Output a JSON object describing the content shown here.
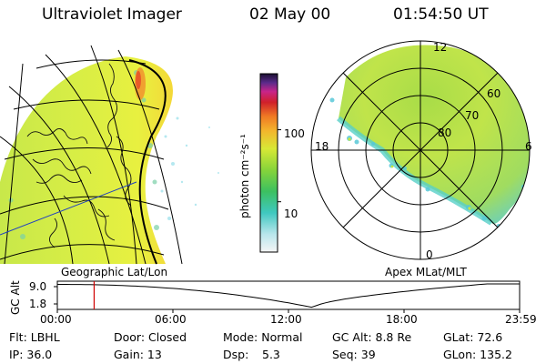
{
  "header": {
    "instrument": "Ultraviolet Imager",
    "date": "02 May 00",
    "time": "01:54:50 UT"
  },
  "colorbar": {
    "unit_label": "photon cm⁻²s⁻¹",
    "ticks": [
      "100",
      "10"
    ],
    "tick_values": [
      100,
      10
    ]
  },
  "left_panel": {
    "label": "Geographic Lat/Lon"
  },
  "right_panel": {
    "label": "Apex MLat/MLT",
    "mlt_labels": [
      "12",
      "18",
      "6",
      "0"
    ],
    "mlat_labels": [
      "60",
      "70",
      "80"
    ]
  },
  "altitude_plot": {
    "ylabel": "GC Alt",
    "yticks": [
      "9.0",
      "1.8"
    ],
    "xticks": [
      "00:00",
      "06:00",
      "12:00",
      "18:00",
      "23:59"
    ],
    "marker_hour": 1.91,
    "marker_color": "#d00000"
  },
  "status": {
    "filter": "Flt: LBHL",
    "door": "Door: Closed",
    "mode": "Mode: Normal",
    "gc_alt": "GC Alt: 8.8 Re",
    "glat": "GLat: 72.6",
    "ip": "IP: 36.0",
    "gain": "Gain: 13",
    "dsp_label": "Dsp:",
    "dsp_value": "5.3",
    "seq": "Seq: 39",
    "glon": "GLon: 135.2"
  }
}
